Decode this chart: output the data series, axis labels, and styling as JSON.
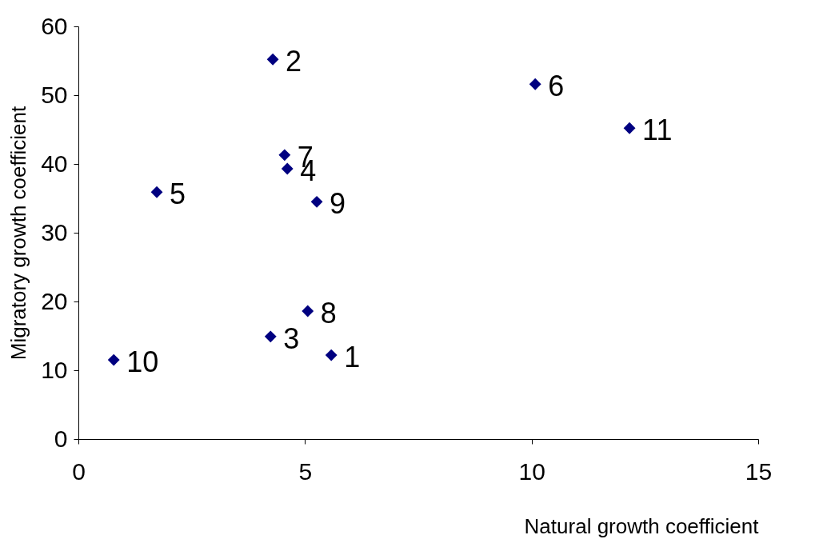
{
  "chart_data": {
    "type": "scatter",
    "xlabel": "Natural growth coefficient",
    "ylabel": "Migratory growth coefficient",
    "x": [
      5.58,
      4.29,
      4.24,
      4.61,
      1.73,
      10.08,
      4.55,
      5.06,
      5.26,
      0.78,
      12.16
    ],
    "series": [
      {
        "color": "#000080",
        "values": [
          12.2,
          55.2,
          14.9,
          39.3,
          35.9,
          51.6,
          41.3,
          18.6,
          34.5,
          11.5,
          45.2
        ]
      }
    ],
    "marker": "diamond",
    "grid": false,
    "xlim": [
      0,
      15
    ],
    "xticks": [
      0,
      5,
      10,
      15
    ],
    "ylim": [
      0,
      60
    ],
    "yticks": [
      0,
      10,
      20,
      30,
      40,
      50,
      60
    ],
    "annotations": [
      {
        "text": "1",
        "x": 5.58,
        "y": 12.2
      },
      {
        "text": "2",
        "x": 4.29,
        "y": 55.2
      },
      {
        "text": "3",
        "x": 4.24,
        "y": 14.9
      },
      {
        "text": "4",
        "x": 4.61,
        "y": 39.3
      },
      {
        "text": "5",
        "x": 1.73,
        "y": 35.9
      },
      {
        "text": "6",
        "x": 10.08,
        "y": 51.6
      },
      {
        "text": "7",
        "x": 4.55,
        "y": 41.3
      },
      {
        "text": "8",
        "x": 5.06,
        "y": 18.6
      },
      {
        "text": "9",
        "x": 5.26,
        "y": 34.5
      },
      {
        "text": "10",
        "x": 0.78,
        "y": 11.5
      },
      {
        "text": "11",
        "x": 12.16,
        "y": 45.2
      }
    ]
  }
}
